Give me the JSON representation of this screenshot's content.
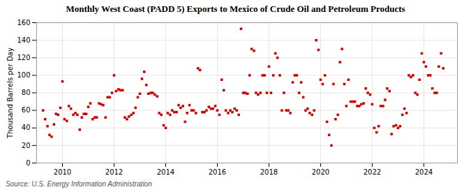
{
  "chart_data": {
    "type": "scatter",
    "title": "Monthly West Coast (PADD 5) Exports to Mexico of Crude Oil and Petroleum Products",
    "ylabel": "Thousand Barrels per Day",
    "source": "Source: U.S. Energy Information Administration",
    "color": "#cc0000",
    "marker": "square",
    "grid": true,
    "xlim": [
      2009.0,
      2025.3
    ],
    "xticks": [
      2010,
      2012,
      2014,
      2016,
      2018,
      2020,
      2022,
      2024
    ],
    "ylim": [
      0,
      160
    ],
    "yticks": [
      0,
      20,
      40,
      60,
      80,
      100,
      120,
      140,
      160
    ],
    "x": [
      2009.25,
      2009.33,
      2009.42,
      2009.5,
      2009.58,
      2009.67,
      2009.75,
      2009.83,
      2009.92,
      2010.0,
      2010.08,
      2010.17,
      2010.25,
      2010.33,
      2010.42,
      2010.5,
      2010.58,
      2010.67,
      2010.75,
      2010.83,
      2010.92,
      2011.0,
      2011.08,
      2011.17,
      2011.25,
      2011.33,
      2011.42,
      2011.5,
      2011.58,
      2011.67,
      2011.75,
      2011.83,
      2011.92,
      2012.0,
      2012.08,
      2012.17,
      2012.25,
      2012.33,
      2012.42,
      2012.5,
      2012.58,
      2012.67,
      2012.75,
      2012.83,
      2012.92,
      2013.0,
      2013.08,
      2013.17,
      2013.25,
      2013.33,
      2013.42,
      2013.5,
      2013.58,
      2013.67,
      2013.75,
      2013.83,
      2013.92,
      2014.0,
      2014.08,
      2014.17,
      2014.25,
      2014.33,
      2014.42,
      2014.5,
      2014.58,
      2014.67,
      2014.75,
      2014.83,
      2014.92,
      2015.0,
      2015.08,
      2015.17,
      2015.25,
      2015.33,
      2015.42,
      2015.5,
      2015.58,
      2015.67,
      2015.75,
      2015.83,
      2015.92,
      2016.0,
      2016.08,
      2016.17,
      2016.25,
      2016.33,
      2016.42,
      2016.5,
      2016.58,
      2016.67,
      2016.75,
      2016.83,
      2016.92,
      2017.0,
      2017.08,
      2017.17,
      2017.25,
      2017.33,
      2017.42,
      2017.5,
      2017.58,
      2017.67,
      2017.75,
      2017.83,
      2017.92,
      2018.0,
      2018.08,
      2018.17,
      2018.25,
      2018.33,
      2018.42,
      2018.5,
      2018.58,
      2018.67,
      2018.75,
      2018.83,
      2018.92,
      2019.0,
      2019.08,
      2019.17,
      2019.25,
      2019.33,
      2019.42,
      2019.5,
      2019.58,
      2019.67,
      2019.75,
      2019.83,
      2019.92,
      2020.0,
      2020.08,
      2020.17,
      2020.25,
      2020.33,
      2020.42,
      2020.5,
      2020.58,
      2020.67,
      2020.75,
      2020.83,
      2020.92,
      2021.0,
      2021.08,
      2021.17,
      2021.25,
      2021.33,
      2021.42,
      2021.5,
      2021.58,
      2021.67,
      2021.75,
      2021.83,
      2021.92,
      2022.0,
      2022.08,
      2022.17,
      2022.25,
      2022.33,
      2022.42,
      2022.5,
      2022.58,
      2022.67,
      2022.75,
      2022.83,
      2022.92,
      2023.0,
      2023.08,
      2023.17,
      2023.25,
      2023.33,
      2023.42,
      2023.5,
      2023.58,
      2023.67,
      2023.75,
      2023.83,
      2023.92,
      2024.0,
      2024.08,
      2024.17,
      2024.25,
      2024.33,
      2024.42,
      2024.5,
      2024.58,
      2024.67,
      2024.75
    ],
    "values": [
      60,
      50,
      42,
      32,
      30,
      44,
      56,
      55,
      63,
      93,
      50,
      48,
      65,
      62,
      55,
      57,
      55,
      38,
      52,
      56,
      56,
      64,
      68,
      50,
      52,
      52,
      68,
      67,
      66,
      52,
      75,
      75,
      80,
      100,
      82,
      84,
      83,
      83,
      52,
      50,
      53,
      55,
      57,
      63,
      75,
      79,
      96,
      104,
      89,
      79,
      80,
      80,
      78,
      76,
      57,
      55,
      43,
      40,
      57,
      55,
      60,
      58,
      58,
      66,
      63,
      65,
      47,
      57,
      66,
      60,
      60,
      57,
      108,
      106,
      58,
      58,
      60,
      64,
      62,
      62,
      65,
      60,
      55,
      95,
      83,
      60,
      57,
      60,
      58,
      62,
      60,
      55,
      153,
      80,
      80,
      79,
      100,
      130,
      128,
      80,
      78,
      80,
      100,
      100,
      80,
      110,
      80,
      100,
      125,
      120,
      100,
      60,
      80,
      60,
      60,
      57,
      92,
      100,
      100,
      80,
      92,
      75,
      60,
      62,
      57,
      55,
      60,
      140,
      129,
      95,
      90,
      100,
      47,
      32,
      20,
      90,
      50,
      55,
      115,
      130,
      90,
      65,
      95,
      70,
      70,
      70,
      65,
      65,
      67,
      68,
      85,
      80,
      78,
      67,
      40,
      35,
      42,
      65,
      65,
      72,
      85,
      82,
      33,
      42,
      43,
      40,
      42,
      55,
      62,
      57,
      100,
      98,
      100,
      80,
      78,
      95,
      125,
      115,
      110,
      100,
      100,
      85,
      80,
      80,
      110,
      125,
      108
    ]
  }
}
